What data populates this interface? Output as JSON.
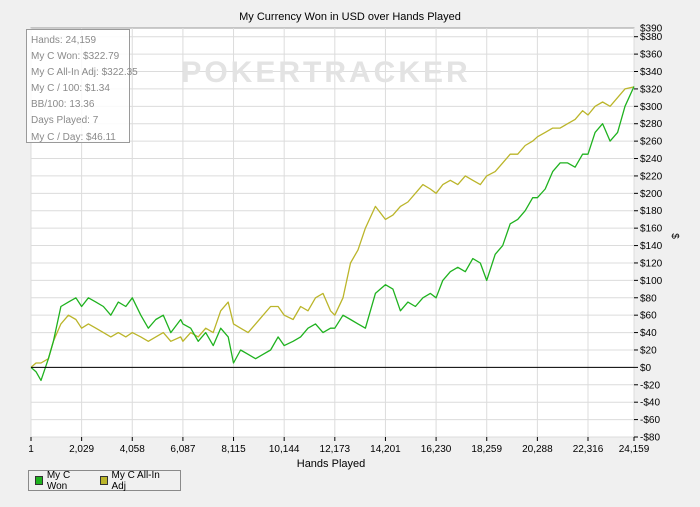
{
  "colors": {
    "my_c_won": "#1fb21f",
    "my_c_all_in_adj": "#bbb52a",
    "zero_line": "#000000",
    "grid": "#dcdcdc",
    "watermark": "#e3e3e3"
  },
  "watermark": "POKERTRACKER",
  "info": [
    "Hands: 24,159",
    "My C Won: $322.79",
    "My C All-In Adj: $322.35",
    "My C / 100: $1.34",
    "BB/100: 13.36",
    "Days Played: 7",
    "My C / Day: $46.11"
  ],
  "chart_data": {
    "type": "line",
    "title": "My Currency Won in USD over Hands Played",
    "xlabel": "Hands Played",
    "ylabel": "$",
    "xlim": [
      1,
      24159
    ],
    "ylim": [
      -80,
      390
    ],
    "grid": true,
    "legend_position": "bottom-left",
    "x_ticks": [
      1,
      2029,
      4058,
      6087,
      8115,
      10144,
      12173,
      14201,
      16230,
      18259,
      20288,
      22316,
      24159
    ],
    "x_tick_labels": [
      "1",
      "2,029",
      "4,058",
      "6,087",
      "8,115",
      "10,144",
      "12,173",
      "14,201",
      "16,230",
      "18,259",
      "20,288",
      "22,316",
      "24,159"
    ],
    "y_ticks": [
      -80,
      -60,
      -40,
      -20,
      0,
      20,
      40,
      60,
      80,
      100,
      120,
      140,
      160,
      180,
      200,
      220,
      240,
      260,
      280,
      300,
      320,
      340,
      360,
      380
    ],
    "y_tick_labels": [
      "-$80",
      "-$60",
      "-$40",
      "-$20",
      "$0",
      "$20",
      "$40",
      "$60",
      "$80",
      "$100",
      "$120",
      "$140",
      "$160",
      "$180",
      "$200",
      "$220",
      "$240",
      "$260",
      "$280",
      "$300",
      "$320",
      "$340",
      "$360",
      "$380"
    ],
    "top_tick_label": "$390",
    "series": [
      {
        "name": "My C Won",
        "x": [
          1,
          200,
          400,
          700,
          900,
          1200,
          1500,
          1800,
          2029,
          2300,
          2600,
          2900,
          3200,
          3500,
          3800,
          4058,
          4400,
          4700,
          5000,
          5300,
          5600,
          6000,
          6087,
          6400,
          6700,
          7000,
          7300,
          7600,
          7900,
          8115,
          8400,
          8700,
          9000,
          9300,
          9600,
          9900,
          10144,
          10500,
          10800,
          11100,
          11400,
          11700,
          12000,
          12173,
          12500,
          12800,
          13100,
          13400,
          13800,
          14201,
          14500,
          14800,
          15100,
          15400,
          15700,
          16000,
          16230,
          16500,
          16800,
          17100,
          17400,
          17700,
          18000,
          18259,
          18600,
          18900,
          19200,
          19500,
          19800,
          20100,
          20288,
          20600,
          20900,
          21200,
          21500,
          21800,
          22100,
          22316,
          22600,
          22900,
          23200,
          23500,
          23800,
          24159
        ],
        "y": [
          0,
          -5,
          -15,
          10,
          30,
          70,
          75,
          80,
          70,
          80,
          75,
          70,
          60,
          75,
          70,
          80,
          60,
          45,
          55,
          60,
          40,
          55,
          50,
          45,
          30,
          40,
          25,
          45,
          35,
          5,
          20,
          15,
          10,
          15,
          20,
          35,
          25,
          30,
          35,
          45,
          50,
          40,
          45,
          45,
          60,
          55,
          50,
          45,
          85,
          95,
          90,
          65,
          75,
          70,
          80,
          85,
          80,
          100,
          110,
          115,
          110,
          125,
          120,
          100,
          130,
          140,
          165,
          170,
          180,
          195,
          195,
          205,
          225,
          235,
          235,
          230,
          245,
          245,
          270,
          280,
          260,
          270,
          300,
          322.79
        ]
      },
      {
        "name": "My C All-In Adj",
        "x": [
          1,
          200,
          400,
          700,
          900,
          1200,
          1500,
          1800,
          2029,
          2300,
          2600,
          2900,
          3200,
          3500,
          3800,
          4058,
          4400,
          4700,
          5000,
          5300,
          5600,
          6000,
          6087,
          6400,
          6700,
          7000,
          7300,
          7600,
          7900,
          8115,
          8400,
          8700,
          9000,
          9300,
          9600,
          9900,
          10144,
          10500,
          10800,
          11100,
          11400,
          11700,
          12000,
          12173,
          12500,
          12800,
          13100,
          13400,
          13800,
          14201,
          14500,
          14800,
          15100,
          15400,
          15700,
          16000,
          16230,
          16500,
          16800,
          17100,
          17400,
          17700,
          18000,
          18259,
          18600,
          18900,
          19200,
          19500,
          19800,
          20100,
          20288,
          20600,
          20900,
          21200,
          21500,
          21800,
          22100,
          22316,
          22600,
          22900,
          23200,
          23500,
          23800,
          24159
        ],
        "y": [
          0,
          5,
          5,
          10,
          30,
          50,
          60,
          55,
          45,
          50,
          45,
          40,
          35,
          40,
          35,
          40,
          35,
          30,
          35,
          40,
          30,
          35,
          30,
          40,
          35,
          45,
          40,
          65,
          75,
          50,
          45,
          40,
          50,
          60,
          70,
          70,
          60,
          55,
          70,
          65,
          80,
          85,
          65,
          60,
          80,
          120,
          135,
          160,
          185,
          170,
          175,
          185,
          190,
          200,
          210,
          205,
          200,
          210,
          215,
          210,
          220,
          215,
          210,
          220,
          225,
          235,
          245,
          245,
          255,
          260,
          265,
          270,
          275,
          275,
          280,
          285,
          295,
          290,
          300,
          305,
          300,
          310,
          320,
          322.35
        ]
      }
    ]
  },
  "legend": {
    "items": [
      {
        "label": "My C Won"
      },
      {
        "label": "My C All-In Adj"
      }
    ]
  }
}
